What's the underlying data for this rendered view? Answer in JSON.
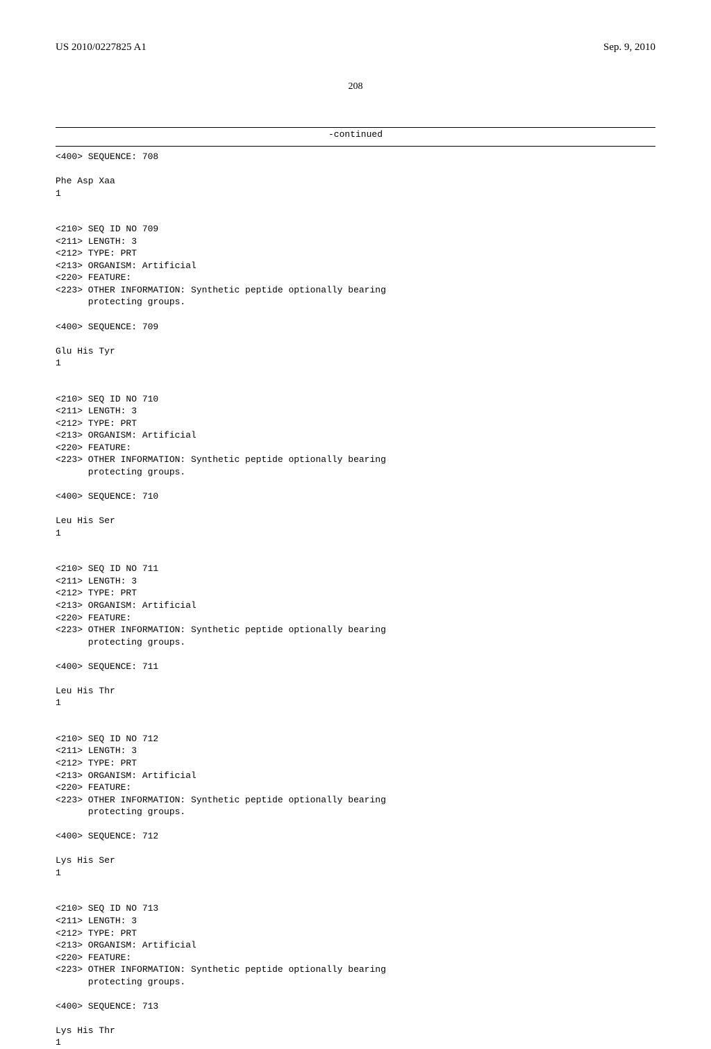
{
  "header": {
    "publication_number": "US 2010/0227825 A1",
    "publication_date": "Sep. 9, 2010"
  },
  "page_number": "208",
  "continued_label": "-continued",
  "sequences": [
    {
      "lines": [
        "<400> SEQUENCE: 708",
        "",
        "Phe Asp Xaa",
        "1"
      ]
    },
    {
      "lines": [
        "<210> SEQ ID NO 709",
        "<211> LENGTH: 3",
        "<212> TYPE: PRT",
        "<213> ORGANISM: Artificial",
        "<220> FEATURE:",
        "<223> OTHER INFORMATION: Synthetic peptide optionally bearing",
        "      protecting groups.",
        "",
        "<400> SEQUENCE: 709",
        "",
        "Glu His Tyr",
        "1"
      ]
    },
    {
      "lines": [
        "<210> SEQ ID NO 710",
        "<211> LENGTH: 3",
        "<212> TYPE: PRT",
        "<213> ORGANISM: Artificial",
        "<220> FEATURE:",
        "<223> OTHER INFORMATION: Synthetic peptide optionally bearing",
        "      protecting groups.",
        "",
        "<400> SEQUENCE: 710",
        "",
        "Leu His Ser",
        "1"
      ]
    },
    {
      "lines": [
        "<210> SEQ ID NO 711",
        "<211> LENGTH: 3",
        "<212> TYPE: PRT",
        "<213> ORGANISM: Artificial",
        "<220> FEATURE:",
        "<223> OTHER INFORMATION: Synthetic peptide optionally bearing",
        "      protecting groups.",
        "",
        "<400> SEQUENCE: 711",
        "",
        "Leu His Thr",
        "1"
      ]
    },
    {
      "lines": [
        "<210> SEQ ID NO 712",
        "<211> LENGTH: 3",
        "<212> TYPE: PRT",
        "<213> ORGANISM: Artificial",
        "<220> FEATURE:",
        "<223> OTHER INFORMATION: Synthetic peptide optionally bearing",
        "      protecting groups.",
        "",
        "<400> SEQUENCE: 712",
        "",
        "Lys His Ser",
        "1"
      ]
    },
    {
      "lines": [
        "<210> SEQ ID NO 713",
        "<211> LENGTH: 3",
        "<212> TYPE: PRT",
        "<213> ORGANISM: Artificial",
        "<220> FEATURE:",
        "<223> OTHER INFORMATION: Synthetic peptide optionally bearing",
        "      protecting groups.",
        "",
        "<400> SEQUENCE: 713",
        "",
        "Lys His Thr",
        "1"
      ]
    }
  ]
}
